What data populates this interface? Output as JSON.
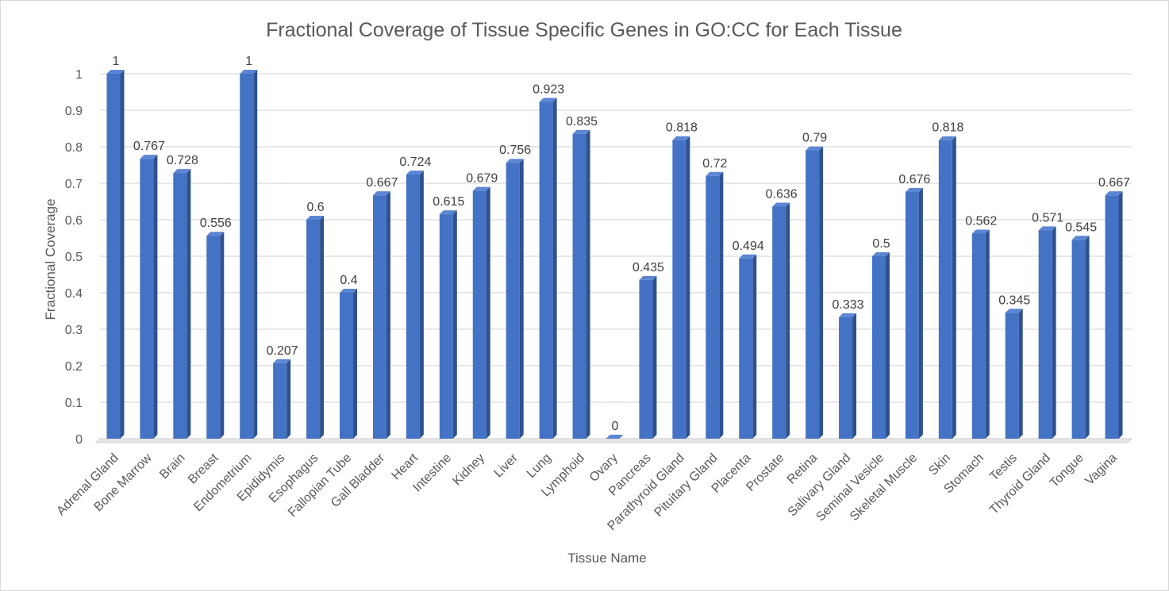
{
  "chart_data": {
    "type": "bar",
    "title": "Fractional Coverage of Tissue Specific Genes in GO:CC for Each Tissue",
    "xlabel": "Tissue Name",
    "ylabel": "Fractional Coverage",
    "ylim": [
      0,
      1
    ],
    "yticks": [
      "0",
      "0.1",
      "0.2",
      "0.3",
      "0.4",
      "0.5",
      "0.6",
      "0.7",
      "0.8",
      "0.9",
      "1"
    ],
    "grid": true,
    "bar_color": "#4472c4",
    "categories": [
      "Adrenal Gland",
      "Bone Marrow",
      "Brain",
      "Breast",
      "Endometrium",
      "Epididymis",
      "Esophagus",
      "Fallopian Tube",
      "Gall Bladder",
      "Heart",
      "Intestine",
      "Kidney",
      "Liver",
      "Lung",
      "Lymphoid",
      "Ovary",
      "Pancreas",
      "Parathyroid Gland",
      "Pituitary Gland",
      "Placenta",
      "Prostate",
      "Retina",
      "Salivary Gland",
      "Seminal Vesicle",
      "Skeletal Muscle",
      "Skin",
      "Stomach",
      "Testis",
      "Thyroid Gland",
      "Tongue",
      "Vagina"
    ],
    "values": [
      1,
      0.767,
      0.728,
      0.556,
      1,
      0.207,
      0.6,
      0.4,
      0.667,
      0.724,
      0.615,
      0.679,
      0.756,
      0.923,
      0.835,
      0,
      0.435,
      0.818,
      0.72,
      0.494,
      0.636,
      0.79,
      0.333,
      0.5,
      0.676,
      0.818,
      0.562,
      0.345,
      0.571,
      0.545,
      0.667
    ],
    "data_labels": [
      "1",
      "0.767",
      "0.728",
      "0.556",
      "1",
      "0.207",
      "0.6",
      "0.4",
      "0.667",
      "0.724",
      "0.615",
      "0.679",
      "0.756",
      "0.923",
      "0.835",
      "0",
      "0.435",
      "0.818",
      "0.72",
      "0.494",
      "0.636",
      "0.79",
      "0.333",
      "0.5",
      "0.676",
      "0.818",
      "0.562",
      "0.345",
      "0.571",
      "0.545",
      "0.667"
    ]
  }
}
